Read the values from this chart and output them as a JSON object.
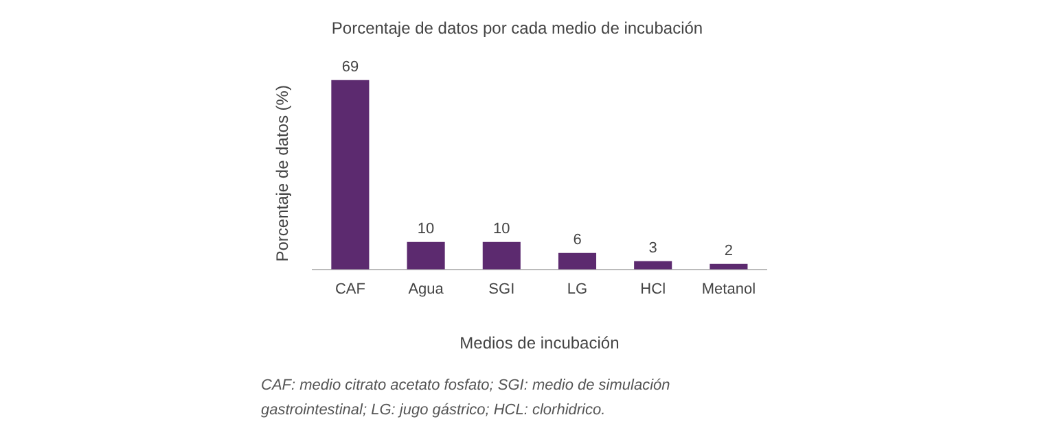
{
  "chart_data": {
    "type": "bar",
    "title": "Porcentaje de datos por cada medio de incubación",
    "xlabel": "Medios de incubación",
    "ylabel": "Porcentaje de datos (%)",
    "categories": [
      "CAF",
      "Agua",
      "SGI",
      "LG",
      "HCl",
      "Metanol"
    ],
    "values": [
      69,
      10,
      10,
      6,
      3,
      2
    ],
    "color": "#5c2a6f",
    "data_labels": true,
    "grid": false,
    "legend": false,
    "annotations": [
      "CAF: medio citrato acetato fosfato; SGI: medio de simulación gastrointestinal; LG: jugo gástrico; HCL: clorhidrico."
    ]
  }
}
